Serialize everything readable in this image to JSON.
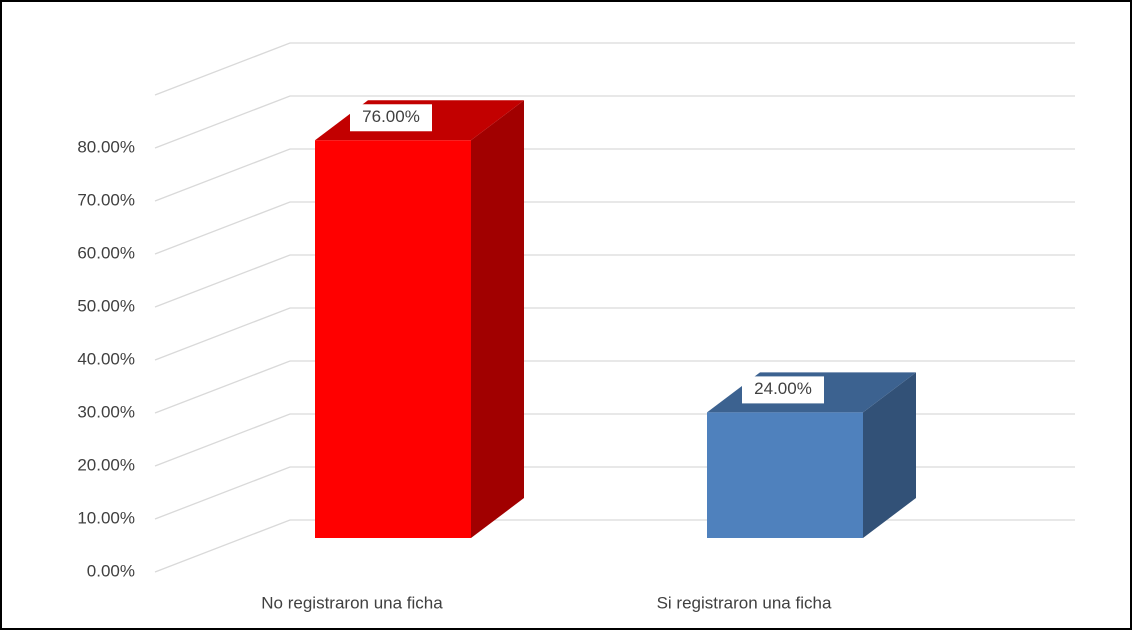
{
  "chart_data": {
    "type": "bar3d",
    "categories": [
      "No registraron una ficha",
      "Si registraron una ficha"
    ],
    "values": [
      76,
      24
    ],
    "value_labels": [
      "76.00%",
      "24.00%"
    ],
    "colors": [
      "#ff0000",
      "#4f81bd"
    ],
    "ylim": [
      0,
      90
    ],
    "yticks": [
      {
        "value": 0,
        "label": "0.00%"
      },
      {
        "value": 10,
        "label": "10.00%"
      },
      {
        "value": 20,
        "label": "20.00%"
      },
      {
        "value": 30,
        "label": "30.00%"
      },
      {
        "value": 40,
        "label": "40.00%"
      },
      {
        "value": 50,
        "label": "50.00%"
      },
      {
        "value": 60,
        "label": "60.00%"
      },
      {
        "value": 70,
        "label": "70.00%"
      },
      {
        "value": 80,
        "label": "80.00%"
      }
    ],
    "grid": true
  }
}
